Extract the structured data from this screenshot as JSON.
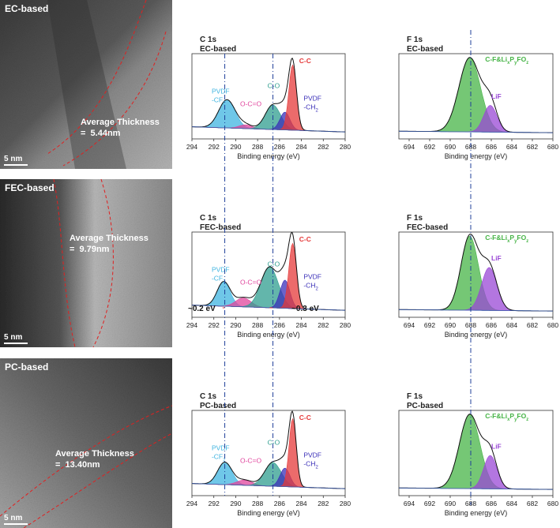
{
  "tem_panels": [
    {
      "label": "EC-based",
      "thickness_text": "Average Thickness\n=  5.44nm",
      "scale_text": "5 nm"
    },
    {
      "label": "FEC-based",
      "thickness_text": "Average Thickness\n=  9.79nm",
      "scale_text": "5 nm"
    },
    {
      "label": "PC-based",
      "thickness_text": "Average Thickness\n=  13.40nm",
      "scale_text": "5 nm"
    }
  ],
  "colors": {
    "CF2": "#3fb4e0",
    "OCO": "#e0449c",
    "CO": "#2f9e8f",
    "CH2": "#3a2fb8",
    "CC": "#e53a3a",
    "CFLi": "#47b447",
    "LiF": "#9a48d6",
    "guide": "#1f3f99"
  },
  "chart_data": {
    "type": "line",
    "x_label": "Binding energy (eV)",
    "c1s_ticks": [
      294,
      292,
      290,
      288,
      286,
      284,
      282,
      280
    ],
    "f1s_ticks": [
      694,
      692,
      690,
      688,
      686,
      684,
      682,
      680
    ],
    "c1s_range": [
      294,
      280
    ],
    "f1s_range": [
      695,
      680
    ],
    "c1s_guides": [
      291.0,
      286.6
    ],
    "f1s_guides": [
      688.0
    ],
    "panels": [
      {
        "c1s_title": "C 1s",
        "c1s_subtitle": "EC-based",
        "f1s_title": "F 1s",
        "f1s_subtitle": "EC-based",
        "c1s_peaks": [
          {
            "key": "CF2",
            "center": 290.8,
            "height": 0.38,
            "width": 0.75
          },
          {
            "key": "OCO",
            "center": 289.1,
            "height": 0.05,
            "width": 0.6
          },
          {
            "key": "CO",
            "center": 286.6,
            "height": 0.33,
            "width": 0.7
          },
          {
            "key": "CH2",
            "center": 285.5,
            "height": 0.24,
            "width": 0.45
          },
          {
            "key": "CC",
            "center": 284.8,
            "height": 0.88,
            "width": 0.35
          }
        ],
        "f1s_peaks": [
          {
            "key": "CFLi",
            "center": 688.1,
            "height": 1.0,
            "width": 1.05
          },
          {
            "key": "LiF",
            "center": 686.1,
            "height": 0.36,
            "width": 0.65
          }
        ],
        "labels": [
          {
            "text": "PVDF",
            "key": "CF2"
          },
          {
            "text": "-CF2",
            "key": "CF2"
          },
          {
            "text": "O-C=O",
            "key": "OCO"
          },
          {
            "text": "C-O",
            "key": "CO"
          },
          {
            "text": "PVDF",
            "key": "CH2"
          },
          {
            "text": "-CH2",
            "key": "CH2"
          },
          {
            "text": "C-C",
            "key": "CC"
          }
        ],
        "f1s_labels": [
          {
            "text": "C-F&LixPyFOz",
            "key": "CFLi"
          },
          {
            "text": "LiF",
            "key": "LiF"
          }
        ]
      },
      {
        "c1s_title": "C 1s",
        "c1s_subtitle": "FEC-based",
        "f1s_title": "F 1s",
        "f1s_subtitle": "FEC-based",
        "c1s_peaks": [
          {
            "key": "CF2",
            "center": 291.1,
            "height": 0.33,
            "width": 0.6
          },
          {
            "key": "OCO",
            "center": 289.3,
            "height": 0.12,
            "width": 0.7
          },
          {
            "key": "CO",
            "center": 286.9,
            "height": 0.55,
            "width": 0.8
          },
          {
            "key": "CH2",
            "center": 285.5,
            "height": 0.38,
            "width": 0.45
          },
          {
            "key": "CC",
            "center": 284.8,
            "height": 0.88,
            "width": 0.35
          }
        ],
        "f1s_peaks": [
          {
            "key": "CFLi",
            "center": 688.1,
            "height": 1.0,
            "width": 0.85
          },
          {
            "key": "LiF",
            "center": 686.2,
            "height": 0.58,
            "width": 0.75
          }
        ],
        "labels": [
          {
            "text": "PVDF",
            "key": "CF2"
          },
          {
            "text": "-CF2",
            "key": "CF2"
          },
          {
            "text": "O-C=O",
            "key": "OCO"
          },
          {
            "text": "C-O",
            "key": "CO"
          },
          {
            "text": "PVDF",
            "key": "CH2"
          },
          {
            "text": "-CH2",
            "key": "CH2"
          },
          {
            "text": "C-C",
            "key": "CC"
          }
        ],
        "f1s_labels": [
          {
            "text": "C-F&LixPyFOz",
            "key": "CFLi"
          },
          {
            "text": "LiF",
            "key": "LiF"
          }
        ],
        "shift_annotations": [
          "~0.2 eV",
          "~0.3 eV"
        ]
      },
      {
        "c1s_title": "C 1s",
        "c1s_subtitle": "PC-based",
        "f1s_title": "F 1s",
        "f1s_subtitle": "PC-based",
        "c1s_peaks": [
          {
            "key": "CF2",
            "center": 291.0,
            "height": 0.3,
            "width": 0.65
          },
          {
            "key": "OCO",
            "center": 289.2,
            "height": 0.07,
            "width": 0.7
          },
          {
            "key": "CO",
            "center": 286.6,
            "height": 0.32,
            "width": 0.75
          },
          {
            "key": "CH2",
            "center": 285.5,
            "height": 0.25,
            "width": 0.45
          },
          {
            "key": "CC",
            "center": 284.8,
            "height": 0.92,
            "width": 0.33
          }
        ],
        "f1s_peaks": [
          {
            "key": "CFLi",
            "center": 688.1,
            "height": 1.0,
            "width": 1.0
          },
          {
            "key": "LiF",
            "center": 686.1,
            "height": 0.45,
            "width": 0.65
          }
        ],
        "labels": [
          {
            "text": "PVDF",
            "key": "CF2"
          },
          {
            "text": "-CF2",
            "key": "CF2"
          },
          {
            "text": "O-C=O",
            "key": "OCO"
          },
          {
            "text": "C-O",
            "key": "CO"
          },
          {
            "text": "PVDF",
            "key": "CH2"
          },
          {
            "text": "-CH2",
            "key": "CH2"
          },
          {
            "text": "C-C",
            "key": "CC"
          }
        ],
        "f1s_labels": [
          {
            "text": "C-F&LixPyFOz",
            "key": "CFLi"
          },
          {
            "text": "LiF",
            "key": "LiF"
          }
        ]
      }
    ]
  }
}
